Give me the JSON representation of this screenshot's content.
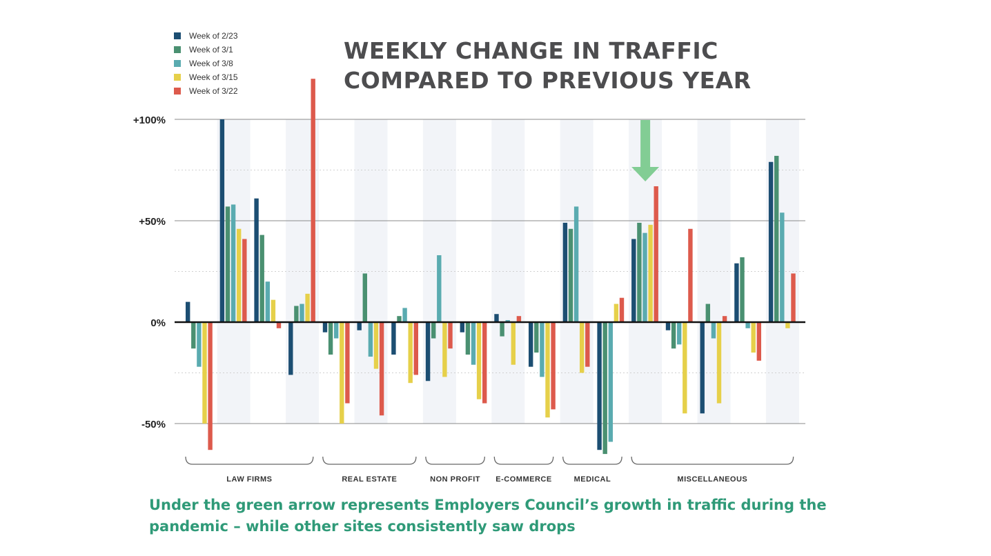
{
  "chart_data": {
    "type": "bar",
    "title_lines": [
      "WEEKLY CHANGE IN TRAFFIC",
      "COMPARED TO PREVIOUS YEAR"
    ],
    "y_tick_labels": [
      "+100%",
      "+50%",
      "0%",
      "-50%"
    ],
    "y_ticks": [
      100,
      50,
      0,
      -50
    ],
    "ylim": [
      -65,
      125
    ],
    "grid": true,
    "legend_position": "top-left",
    "series": [
      {
        "name": "Week of 2/23",
        "color": "#1c4e72"
      },
      {
        "name": "Week of 3/1",
        "color": "#4a9071"
      },
      {
        "name": "Week of 3/8",
        "color": "#5aabb0"
      },
      {
        "name": "Week of 3/15",
        "color": "#e6d04a"
      },
      {
        "name": "Week of 3/22",
        "color": "#dd5a4c"
      }
    ],
    "groups": [
      {
        "label": "LAW FIRMS",
        "sites": 4
      },
      {
        "label": "REAL ESTATE",
        "sites": 3
      },
      {
        "label": "NON PROFIT",
        "sites": 2
      },
      {
        "label": "E-COMMERCE",
        "sites": 2
      },
      {
        "label": "MEDICAL",
        "sites": 2
      },
      {
        "label": "MISCELLANEOUS",
        "sites": 5
      }
    ],
    "values": [
      [
        10,
        -13,
        -22,
        -50,
        -63
      ],
      [
        100,
        57,
        58,
        46,
        41
      ],
      [
        61,
        43,
        20,
        11,
        -3
      ],
      [
        -26,
        8,
        9,
        14,
        120
      ],
      [
        -5,
        -16,
        -8,
        -50,
        -40
      ],
      [
        -4,
        24,
        -17,
        -23,
        -46
      ],
      [
        -16,
        3,
        7,
        -30,
        -26
      ],
      [
        -29,
        -8,
        33,
        -27,
        -13
      ],
      [
        -5,
        -16,
        -21,
        -38,
        -40
      ],
      [
        4,
        -7,
        1,
        -21,
        3
      ],
      [
        -22,
        -15,
        -27,
        -47,
        -43
      ],
      [
        49,
        46,
        57,
        -25,
        -22
      ],
      [
        -63,
        -65,
        -59,
        9,
        12
      ],
      [
        41,
        49,
        44,
        48,
        67
      ],
      [
        -4,
        -13,
        -11,
        -45,
        46
      ],
      [
        -45,
        9,
        -8,
        -40,
        3
      ],
      [
        29,
        32,
        -3,
        -15,
        -19
      ],
      [
        79,
        82,
        54,
        -3,
        24
      ]
    ],
    "highlighted_site_index": 13,
    "highlight_arrow_color": "#82cd94"
  },
  "caption_lines": [
    "Under the green arrow represents Employers Council’s growth in traffic during the",
    "pandemic – while other sites consistently saw drops"
  ]
}
